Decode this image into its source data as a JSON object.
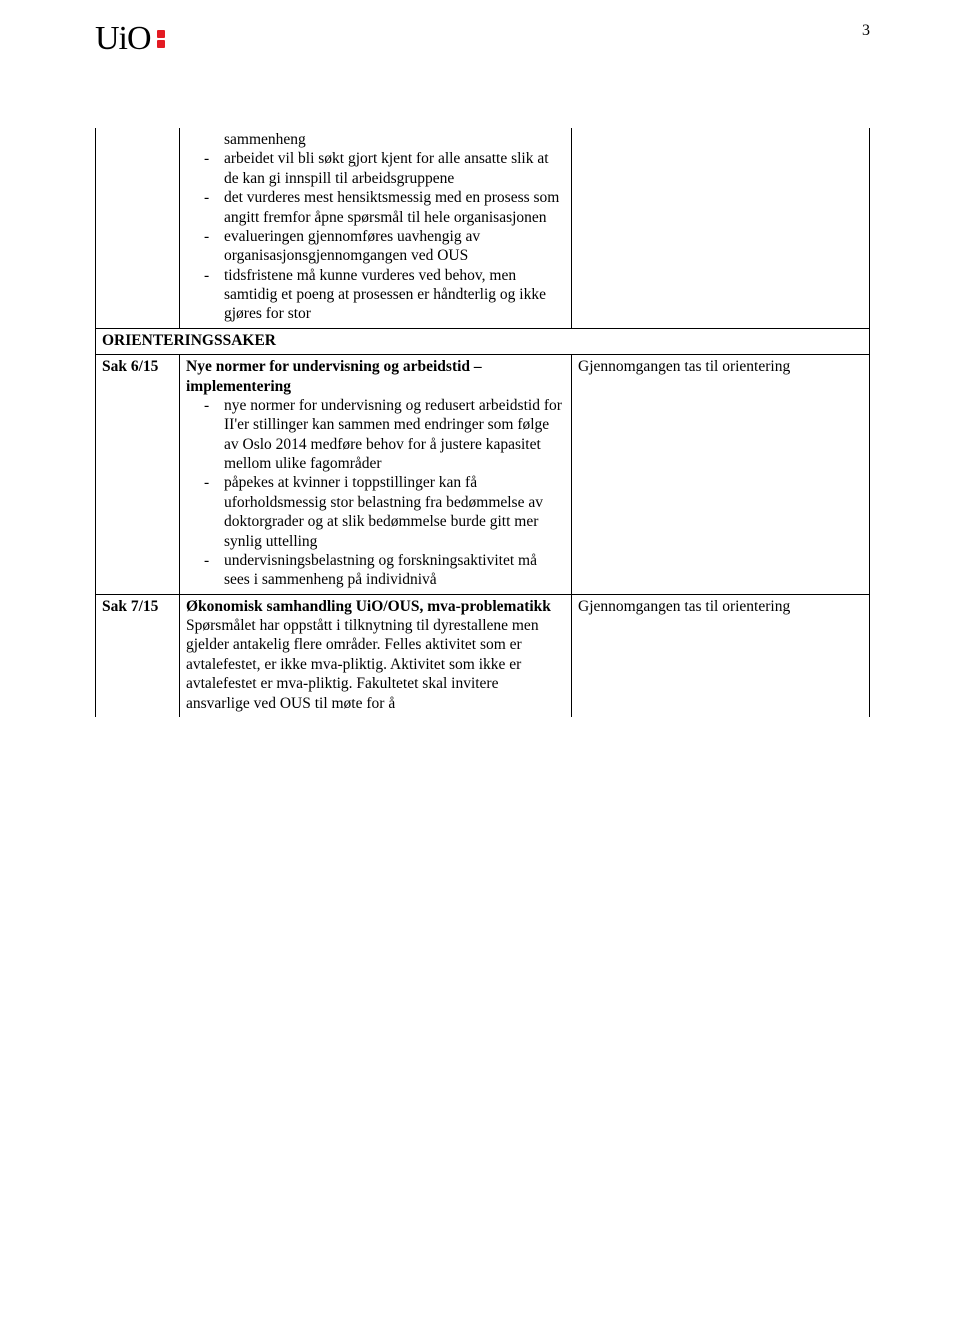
{
  "header": {
    "logo_text": "UiO",
    "page_number": "3"
  },
  "top_cell": {
    "lead_word": "sammenheng",
    "items": [
      "arbeidet vil bli søkt gjort kjent for alle ansatte slik at de kan gi innspill til arbeidsgruppene",
      "det vurderes mest hensiktsmessig med en prosess som angitt fremfor åpne spørsmål til hele organisasjonen",
      " evalueringen gjennomføres uavhengig av organisasjonsgjennomgangen ved OUS",
      "tidsfristene må kunne vurderes ved behov, men samtidig et poeng at prosessen er håndterlig og ikke gjøres for stor"
    ]
  },
  "section_header": "ORIENTERINGSSAKER",
  "sak6": {
    "id": "Sak 6/15",
    "title": "Nye normer for undervisning og arbeidstid – implementering",
    "items": [
      "nye normer for undervisning og redusert arbeidstid for II'er stillinger kan sammen med endringer som følge av Oslo 2014 medføre behov for å justere kapasitet mellom ulike fagområder",
      "påpekes at kvinner i toppstillinger kan få uforholdsmessig stor belastning fra bedømmelse av doktorgrader og at slik bedømmelse burde gitt mer synlig uttelling",
      "undervisningsbelastning og forskningsaktivitet må sees i sammenheng på individnivå"
    ],
    "right": "Gjennomgangen tas til orientering"
  },
  "sak7": {
    "id": "Sak 7/15",
    "title": "Økonomisk samhandling UiO/OUS, mva-problematikk",
    "body": "Spørsmålet har oppstått i tilknytning til dyrestallene men gjelder antakelig flere områder. Felles aktivitet som er avtalefestet, er ikke mva-pliktig. Aktivitet som ikke er avtalefestet er mva-pliktig. Fakultetet skal invitere ansvarlige ved OUS til møte for å",
    "right": "Gjennomgangen tas til orientering"
  },
  "colors": {
    "accent_red": "#e31b23",
    "text": "#000000",
    "background": "#ffffff",
    "border": "#000000"
  }
}
